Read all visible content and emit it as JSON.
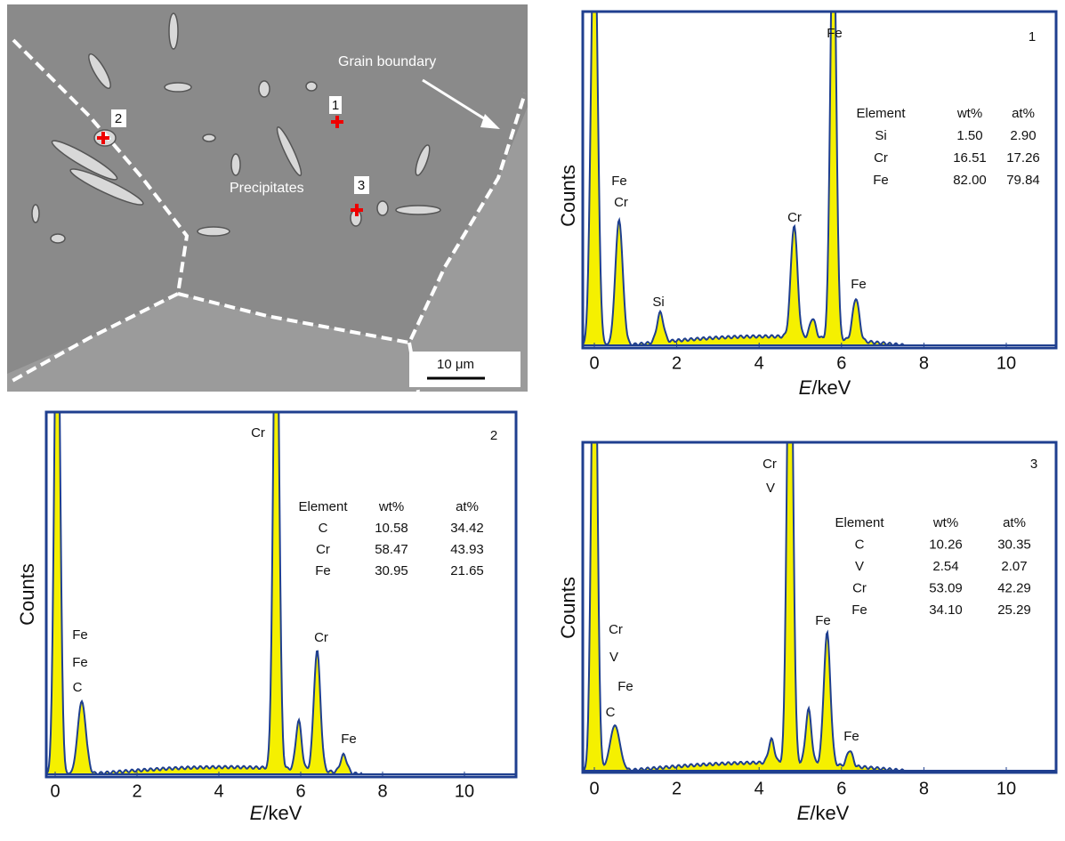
{
  "sem": {
    "points": [
      "1",
      "2",
      "3"
    ],
    "grain_boundary": "Grain boundary",
    "precipitates": "Precipitates",
    "scale_bar": "10 μm"
  },
  "spectra": [
    {
      "id": "1",
      "y_label": "Counts",
      "x_label": {
        "symbol": "E",
        "unit": "/keV"
      },
      "x_ticks": [
        "0",
        "2",
        "4",
        "6",
        "8",
        "10"
      ],
      "peak_labels": [
        "Fe",
        "Cr",
        "Si",
        "Cr",
        "Fe",
        "Fe"
      ],
      "table": {
        "header": [
          "Element",
          "wt%",
          "at%"
        ],
        "rows": [
          [
            "Si",
            "1.50",
            "2.90"
          ],
          [
            "Cr",
            "16.51",
            "17.26"
          ],
          [
            "Fe",
            "82.00",
            "79.84"
          ]
        ]
      }
    },
    {
      "id": "2",
      "y_label": "Counts",
      "x_label": {
        "symbol": "E",
        "unit": "/keV"
      },
      "x_ticks": [
        "0",
        "2",
        "4",
        "6",
        "8",
        "10"
      ],
      "peak_labels": [
        "Cr",
        "Fe",
        "C",
        "Cr",
        "Fe",
        "Fe"
      ],
      "table": {
        "header": [
          "Element",
          "wt%",
          "at%"
        ],
        "rows": [
          [
            "C",
            "10.58",
            "34.42"
          ],
          [
            "Cr",
            "58.47",
            "43.93"
          ],
          [
            "Fe",
            "30.95",
            "21.65"
          ]
        ]
      }
    },
    {
      "id": "3",
      "y_label": "Counts",
      "x_label": {
        "symbol": "E",
        "unit": "/keV"
      },
      "x_ticks": [
        "0",
        "2",
        "4",
        "6",
        "8",
        "10"
      ],
      "peak_labels": [
        "Cr",
        "V",
        "Fe",
        "C",
        "Cr",
        "V",
        "Fe",
        "Fe"
      ],
      "table": {
        "header": [
          "Element",
          "wt%",
          "at%"
        ],
        "rows": [
          [
            "C",
            "10.26",
            "30.35"
          ],
          [
            "V",
            "2.54",
            "2.07"
          ],
          [
            "Cr",
            "53.09",
            "42.29"
          ],
          [
            "Fe",
            "34.10",
            "25.29"
          ]
        ]
      }
    }
  ]
}
